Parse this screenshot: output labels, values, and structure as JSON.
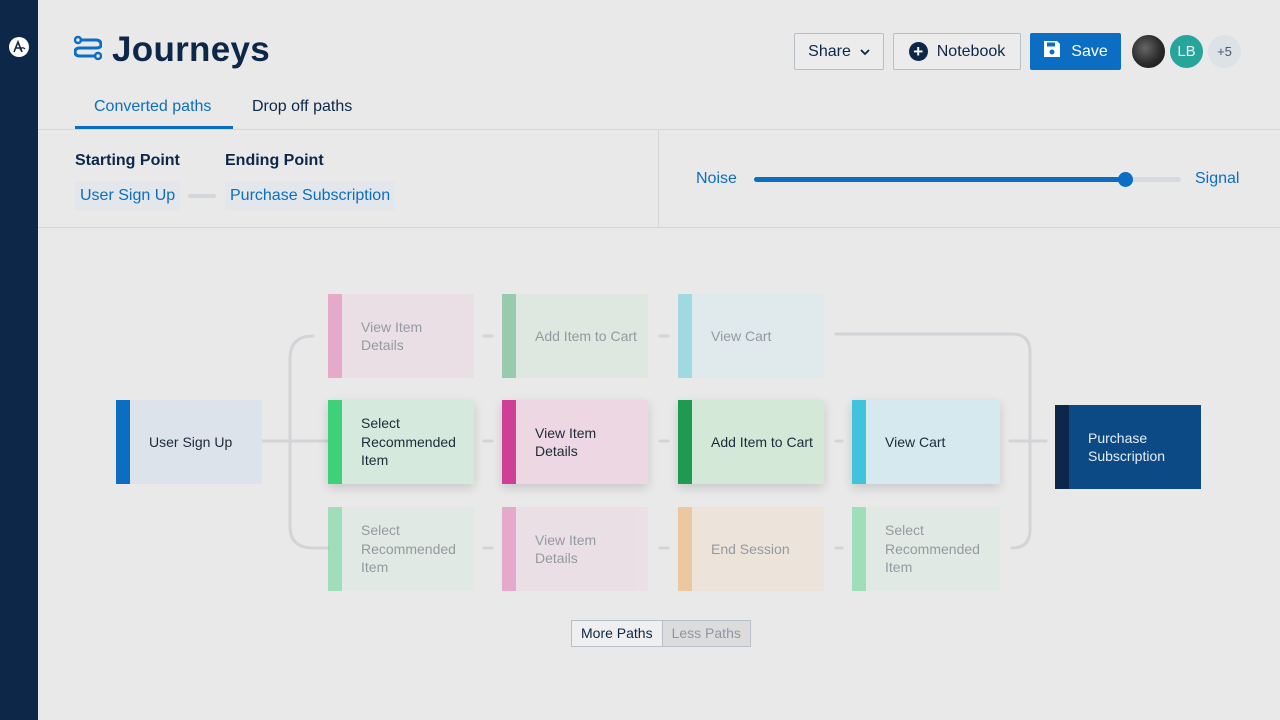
{
  "app": {
    "title": "Journeys"
  },
  "header": {
    "share_label": "Share",
    "notebook_label": "Notebook",
    "save_label": "Save",
    "avatars": {
      "second_initials": "LB",
      "more_count": "+5"
    }
  },
  "tabs": [
    {
      "label": "Converted paths",
      "active": true
    },
    {
      "label": "Drop off paths",
      "active": false
    }
  ],
  "filters": {
    "starting_label": "Starting Point",
    "starting_value": "User Sign Up",
    "ending_label": "Ending Point",
    "ending_value": "Purchase Subscription"
  },
  "slider": {
    "left_label": "Noise",
    "right_label": "Signal",
    "value_fraction": 0.87
  },
  "flow": {
    "start": {
      "label": "User Sign Up",
      "color": "#0b6ec2"
    },
    "end": {
      "label": "Purchase Subscription",
      "color": "#0d2748"
    },
    "paths": [
      {
        "steps": [
          {
            "label": "View Item Details",
            "color": "#e0559f"
          },
          {
            "label": "Add Item to Cart",
            "color": "#29a05c"
          },
          {
            "label": "View Cart",
            "color": "#3fc4dc"
          }
        ],
        "highlighted": false
      },
      {
        "steps": [
          {
            "label": "Select Recommended Item",
            "color": "#3ed179"
          },
          {
            "label": "View Item Details",
            "color": "#cf3f97"
          },
          {
            "label": "Add Item to Cart",
            "color": "#1e9a52"
          },
          {
            "label": "View Cart",
            "color": "#3fc4dc"
          }
        ],
        "highlighted": true
      },
      {
        "steps": [
          {
            "label": "Select Recommended Item",
            "color": "#3ed179"
          },
          {
            "label": "View Item Details",
            "color": "#e0559f"
          },
          {
            "label": "End Session",
            "color": "#f39a3c"
          },
          {
            "label": "Select Recommended Item",
            "color": "#3ed179"
          }
        ],
        "highlighted": false
      }
    ]
  },
  "pager": {
    "more_label": "More Paths",
    "less_label": "Less Paths"
  }
}
